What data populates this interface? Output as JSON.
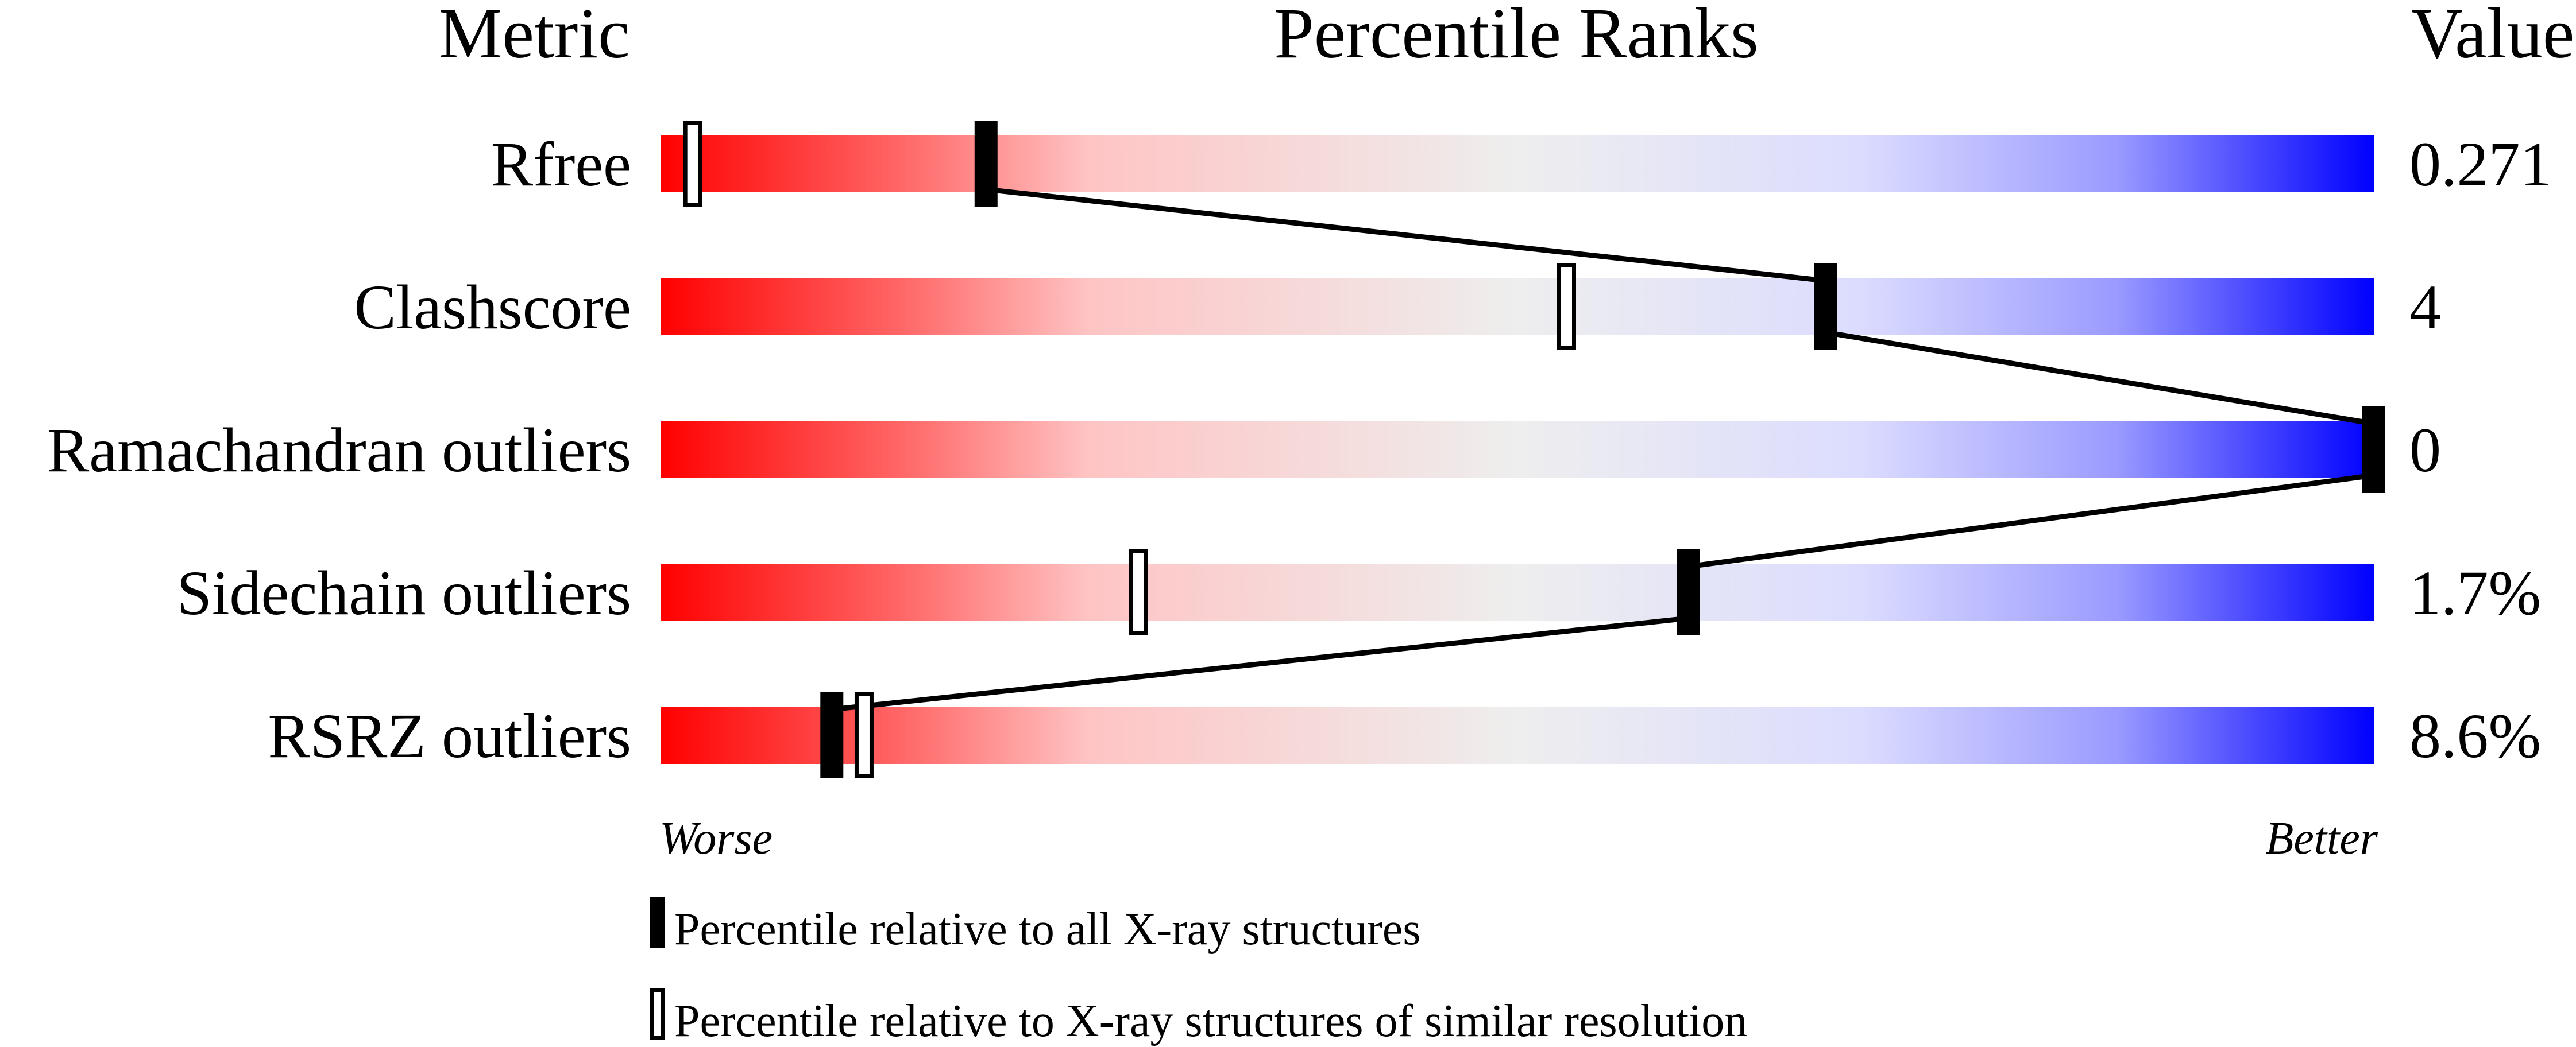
{
  "chart_data": {
    "type": "percentile-bar",
    "headers": {
      "metric": "Metric",
      "ranks": "Percentile Ranks",
      "value": "Value"
    },
    "xlim": [
      0,
      100
    ],
    "axis_labels": {
      "worse": "Worse",
      "better": "Better"
    },
    "colors": {
      "worse": "#ff0000",
      "middle": "#eeeeee",
      "better": "#0000ff"
    },
    "rows": [
      {
        "metric": "Rfree",
        "value": "0.271",
        "percentile_all": 19,
        "percentile_similar": 2
      },
      {
        "metric": "Clashscore",
        "value": "4",
        "percentile_all": 68,
        "percentile_similar": 53
      },
      {
        "metric": "Ramachandran outliers",
        "value": "0",
        "percentile_all": 100,
        "percentile_similar": 100
      },
      {
        "metric": "Sidechain outliers",
        "value": "1.7%",
        "percentile_all": 60,
        "percentile_similar": 28
      },
      {
        "metric": "RSRZ outliers",
        "value": "8.6%",
        "percentile_all": 10,
        "percentile_similar": 12
      }
    ],
    "legend": {
      "all": "Percentile relative to all X-ray structures",
      "similar": "Percentile relative to X-ray structures of similar resolution"
    }
  }
}
